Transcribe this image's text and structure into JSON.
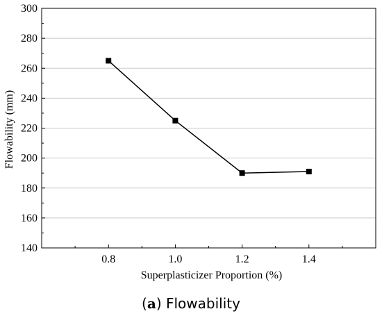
{
  "chart_data": {
    "type": "line",
    "x": [
      0.8,
      1.0,
      1.2,
      1.4
    ],
    "x_tick_labels": [
      "0.8",
      "1.0",
      "1.2",
      "1.4"
    ],
    "series": [
      {
        "values": [
          265,
          225,
          190,
          191
        ]
      }
    ],
    "xlabel": "Superplasticizer Proportion  (%)",
    "ylabel": "Flowability  (mm)",
    "xlim": [
      0.6,
      1.6
    ],
    "ylim": [
      140,
      300
    ],
    "y_ticks": [
      140,
      160,
      180,
      200,
      220,
      240,
      260,
      280,
      300
    ],
    "grid": "horizontal",
    "marker": "square",
    "line_color": "#000000",
    "grid_color": "#c8c8c8"
  },
  "caption": {
    "letter": "a",
    "title": "Flowability"
  }
}
